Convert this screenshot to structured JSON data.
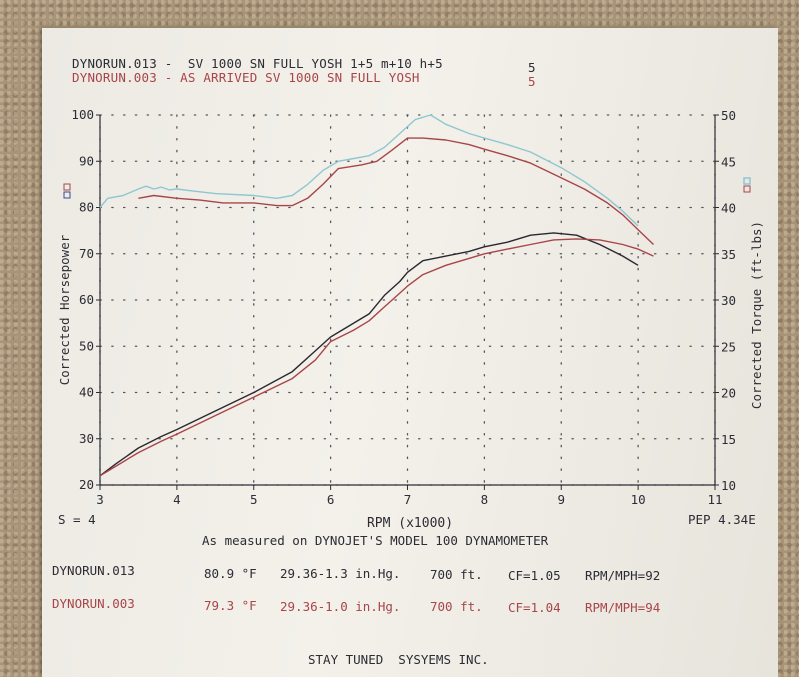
{
  "colors": {
    "run013_hp": "#8ec7d2",
    "run013_tq": "#2a2730",
    "run003_hp": "#a8454a",
    "run003_tq": "#a8454a",
    "grid": "#55555a",
    "ink": "#2c2c35"
  },
  "header": {
    "run1_line": "DYNORUN.013 -  SV 1000 SN FULL YOSH 1+5 m+10 h+5",
    "run1_num": "5",
    "run2_line": "DYNORUN.003 - AS ARRIVED SV 1000 SN FULL YOSH",
    "run2_num": "5"
  },
  "left_footer": "S = 4",
  "right_footer": "PEP 4.34E",
  "measured_note": "As measured on DYNOJET'S MODEL 100 DYNAMOMETER",
  "runs": [
    {
      "name": "DYNORUN.013",
      "temp": "80.9 °F",
      "baro": "29.36-1.3 in.Hg.",
      "alt": "700 ft.",
      "cf": "CF=1.05",
      "rpm_mph": "RPM/MPH=92"
    },
    {
      "name": "DYNORUN.003",
      "temp": "79.3 °F",
      "baro": "29.36-1.0 in.Hg.",
      "alt": "700 ft.",
      "cf": "CF=1.04",
      "rpm_mph": "RPM/MPH=94"
    }
  ],
  "company": "STAY TUNED  SYSYEMS INC.",
  "chart_data": {
    "type": "line",
    "xlabel": "RPM (x1000)",
    "ylabel": "Corrected Horsepower",
    "y2label": "Corrected Torque (ft-lbs)",
    "xlim": [
      3,
      11
    ],
    "ylim": [
      20,
      100
    ],
    "y2lim": [
      10,
      50
    ],
    "xticks": [
      "3",
      "4",
      "5",
      "6",
      "7",
      "8",
      "9",
      "10",
      "11"
    ],
    "yticks": [
      "20",
      "30",
      "40",
      "50",
      "60",
      "70",
      "80",
      "90",
      "100"
    ],
    "y2ticks": [
      "10",
      "15",
      "20",
      "25",
      "30",
      "35",
      "40",
      "45",
      "50"
    ],
    "grid": true,
    "series": [
      {
        "name": "DYNORUN.013",
        "measure": "torque",
        "axis": "right",
        "color_key": "run013_hp",
        "x": [
          3.0,
          3.1,
          3.3,
          3.5,
          3.6,
          3.7,
          3.8,
          3.9,
          4.0,
          4.2,
          4.5,
          5.0,
          5.3,
          5.5,
          5.7,
          5.9,
          6.1,
          6.3,
          6.5,
          6.7,
          6.9,
          7.1,
          7.3,
          7.5,
          7.8,
          8.0,
          8.3,
          8.6,
          9.0,
          9.3,
          9.6,
          9.8,
          10.0
        ],
        "y": [
          40.0,
          41.0,
          41.3,
          42.0,
          42.3,
          42.0,
          42.2,
          41.9,
          42.0,
          41.8,
          41.5,
          41.3,
          41.0,
          41.3,
          42.5,
          44.0,
          45.0,
          45.3,
          45.6,
          46.5,
          48.0,
          49.5,
          50.0,
          49.0,
          48.0,
          47.5,
          46.8,
          46.0,
          44.3,
          42.8,
          41.0,
          39.6,
          38.0
        ]
      },
      {
        "name": "DYNORUN.003",
        "measure": "torque",
        "axis": "right",
        "color_key": "run003_tq",
        "x": [
          3.5,
          3.7,
          4.0,
          4.3,
          4.6,
          5.0,
          5.3,
          5.5,
          5.7,
          5.9,
          6.1,
          6.4,
          6.6,
          6.8,
          7.0,
          7.2,
          7.5,
          7.8,
          8.0,
          8.3,
          8.6,
          9.0,
          9.3,
          9.6,
          9.8,
          10.0,
          10.2
        ],
        "y": [
          41.0,
          41.3,
          41.0,
          40.8,
          40.5,
          40.5,
          40.2,
          40.2,
          41.0,
          42.5,
          44.2,
          44.6,
          45.0,
          46.2,
          47.5,
          47.5,
          47.3,
          46.8,
          46.3,
          45.6,
          44.8,
          43.2,
          42.0,
          40.5,
          39.2,
          37.6,
          36.0
        ]
      },
      {
        "name": "DYNORUN.013",
        "measure": "horsepower",
        "axis": "left",
        "color_key": "run013_tq",
        "x": [
          3.0,
          3.2,
          3.5,
          3.8,
          4.0,
          4.5,
          5.0,
          5.5,
          5.8,
          6.0,
          6.3,
          6.5,
          6.7,
          6.9,
          7.0,
          7.2,
          7.5,
          7.8,
          8.0,
          8.3,
          8.6,
          8.9,
          9.2,
          9.5,
          9.8,
          10.0
        ],
        "y": [
          22.0,
          24.5,
          28.0,
          30.5,
          32.0,
          36.0,
          40.0,
          44.5,
          49.0,
          52.0,
          55.0,
          57.0,
          61.0,
          64.0,
          66.0,
          68.5,
          69.5,
          70.5,
          71.5,
          72.5,
          74.0,
          74.5,
          74.0,
          72.0,
          69.5,
          67.5
        ]
      },
      {
        "name": "DYNORUN.003",
        "measure": "horsepower",
        "axis": "left",
        "color_key": "run003_hp",
        "x": [
          3.0,
          3.2,
          3.5,
          3.8,
          4.0,
          4.5,
          5.0,
          5.5,
          5.8,
          6.0,
          6.3,
          6.5,
          6.7,
          6.9,
          7.0,
          7.2,
          7.5,
          7.8,
          8.0,
          8.3,
          8.6,
          8.9,
          9.2,
          9.5,
          9.8,
          10.0,
          10.2
        ],
        "y": [
          22.0,
          24.0,
          27.0,
          29.5,
          31.0,
          35.0,
          39.0,
          43.0,
          47.0,
          51.0,
          53.5,
          55.5,
          58.5,
          61.5,
          63.0,
          65.5,
          67.5,
          69.0,
          70.0,
          71.0,
          72.0,
          73.0,
          73.2,
          73.0,
          72.0,
          71.0,
          69.5
        ]
      }
    ]
  }
}
